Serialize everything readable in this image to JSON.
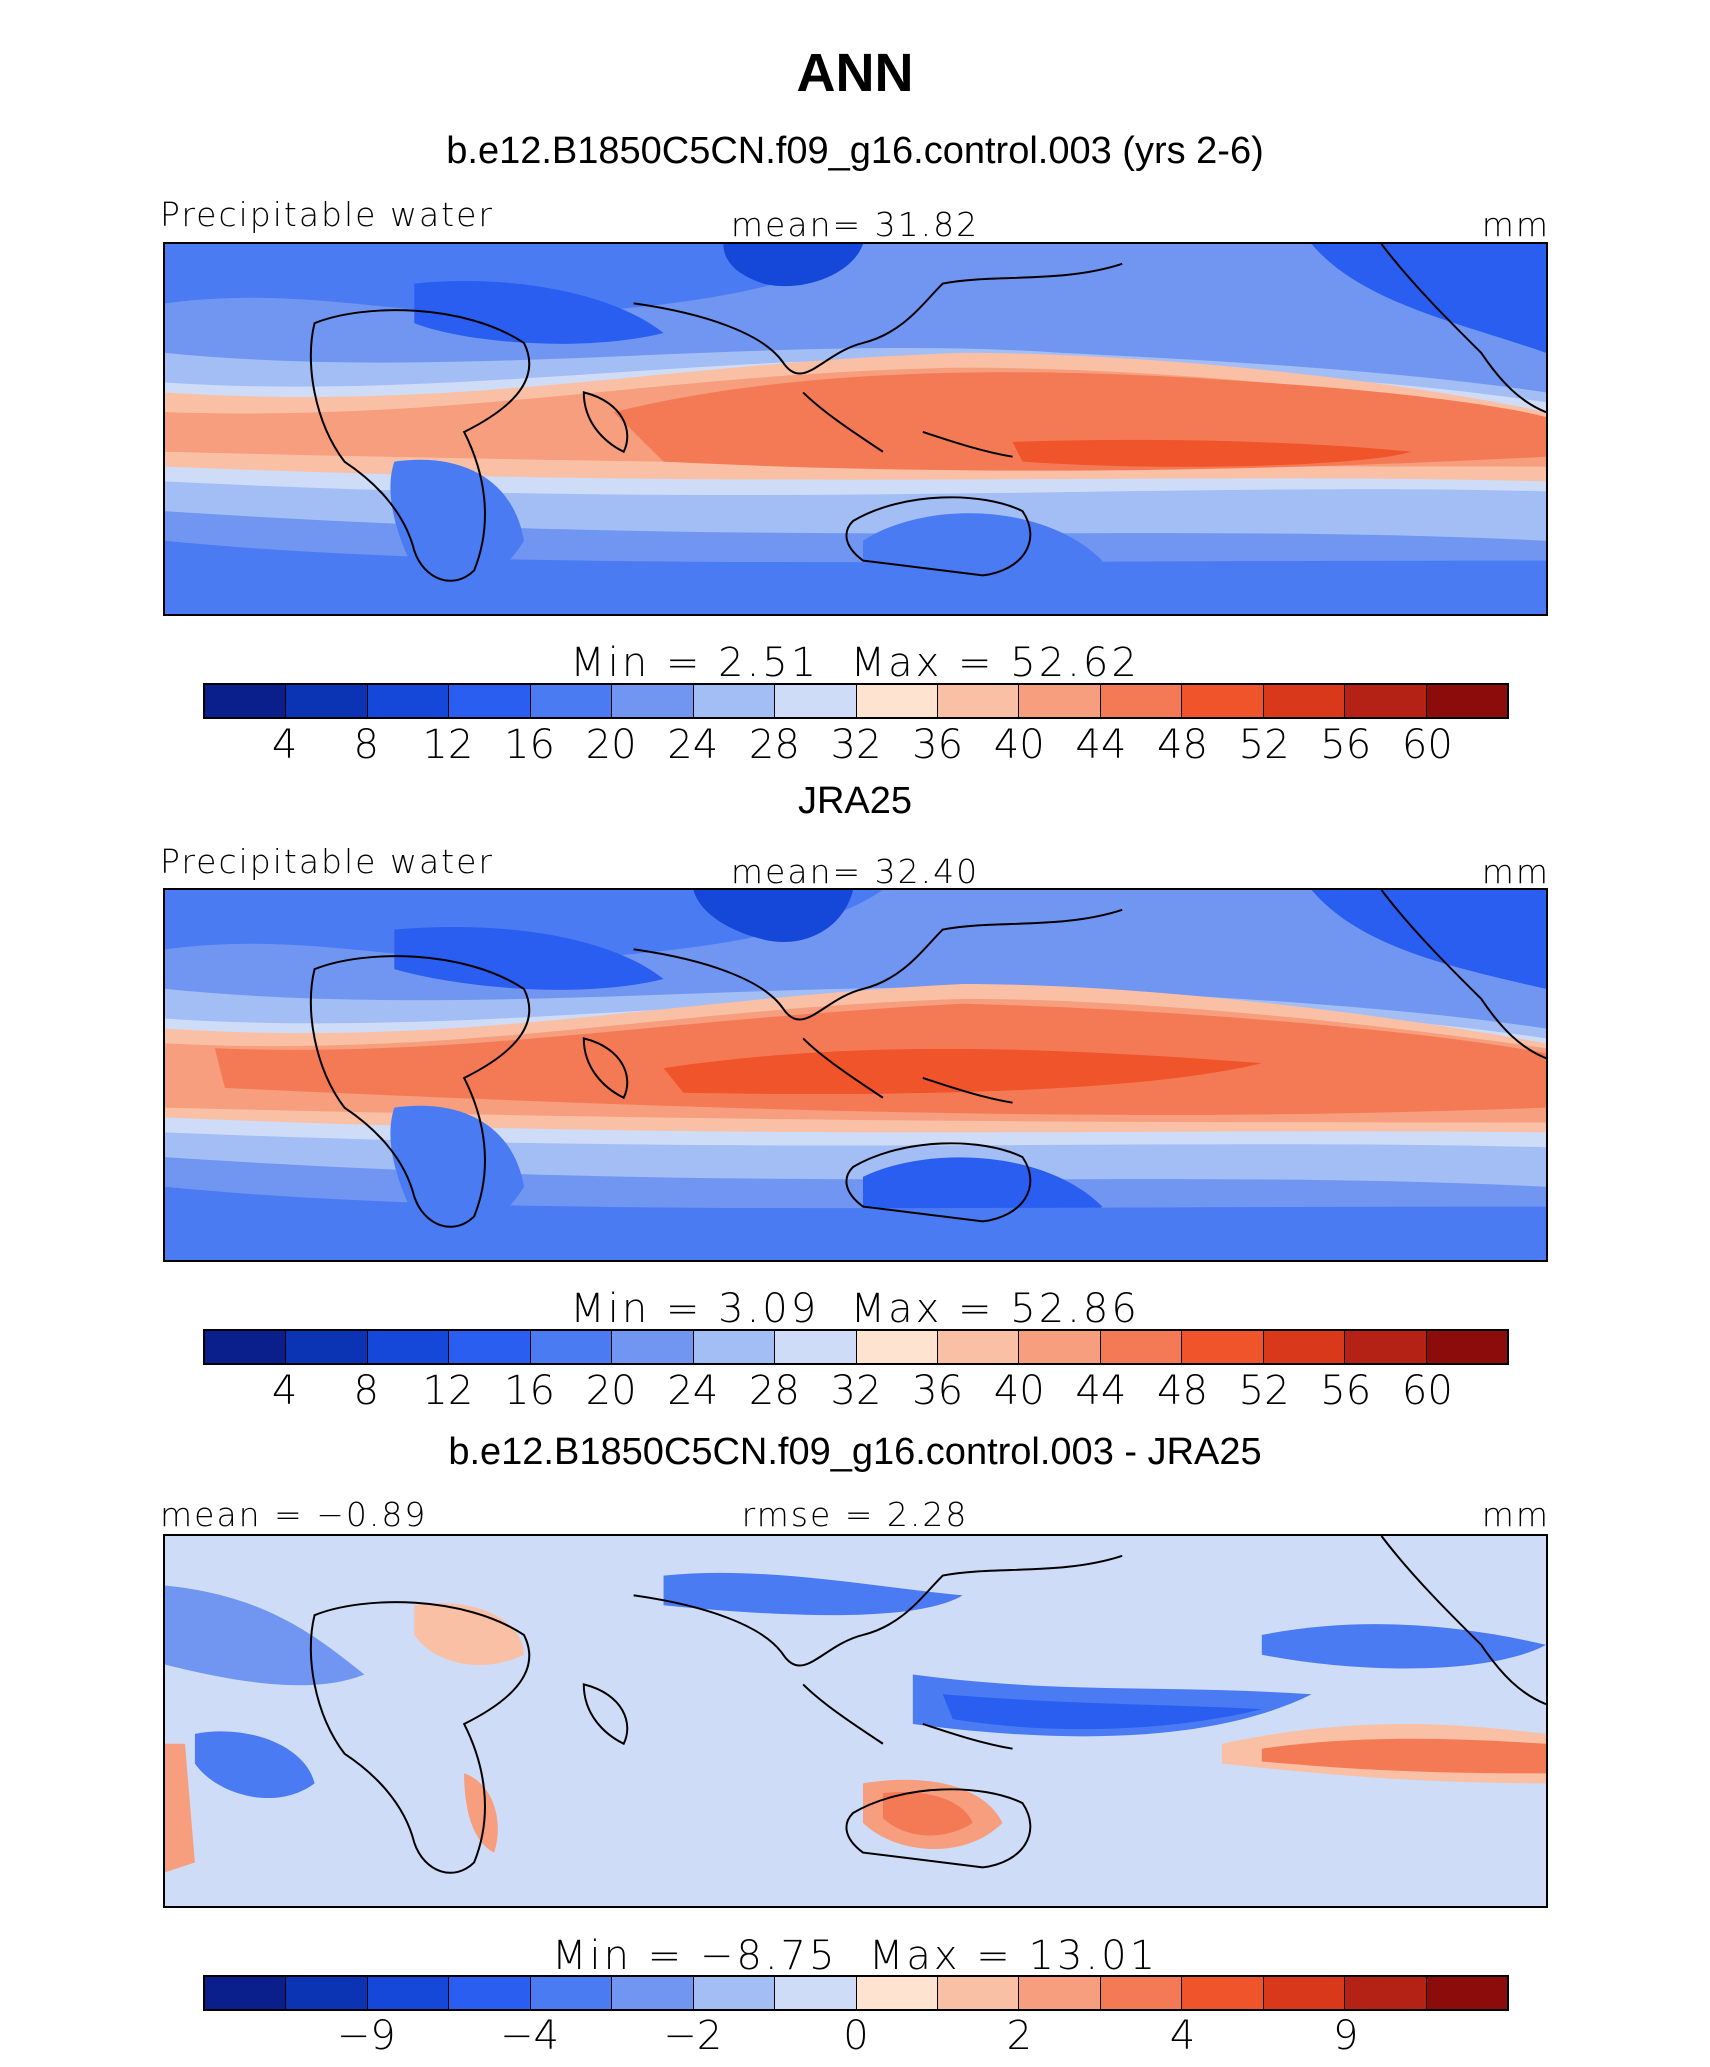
{
  "title": "ANN",
  "colors": [
    "#0a1e8c",
    "#0b34b5",
    "#1547d8",
    "#2a5ef0",
    "#4a7bf2",
    "#7096f2",
    "#a3bdf5",
    "#cfdcf7",
    "#fde3d0",
    "#f9c0a6",
    "#f69e7e",
    "#f47a55",
    "#f0542b",
    "#d9381b",
    "#b32214",
    "#8c0c0c"
  ],
  "panels": [
    {
      "title": "b.e12.B1850C5CN.f09_g16.control.003 (yrs 2-6)",
      "left_label": "Precipitable water",
      "center_label": "mean=   31.82",
      "right_label": "mm",
      "min_text": "Min  =     2.51",
      "max_text": "Max  =    52.62",
      "ticks": [
        "4",
        "8",
        "12",
        "16",
        "20",
        "24",
        "28",
        "32",
        "36",
        "40",
        "44",
        "48",
        "52",
        "56",
        "60"
      ]
    },
    {
      "title": "JRA25",
      "left_label": "Precipitable water",
      "center_label": "mean=   32.40",
      "right_label": "mm",
      "min_text": "Min  =     3.09",
      "max_text": "Max  =    52.86",
      "ticks": [
        "4",
        "8",
        "12",
        "16",
        "20",
        "24",
        "28",
        "32",
        "36",
        "40",
        "44",
        "48",
        "52",
        "56",
        "60"
      ]
    },
    {
      "title": "b.e12.B1850C5CN.f09_g16.control.003 - JRA25",
      "left_label": "mean =  −0.89",
      "center_label": "rmse =     2.28",
      "right_label": "mm",
      "min_text": "Min  =   −8.75",
      "max_text": "Max  =    13.01",
      "ticks": [
        "−9",
        "−4",
        "−2",
        "0",
        "2",
        "4",
        "9"
      ]
    }
  ]
}
